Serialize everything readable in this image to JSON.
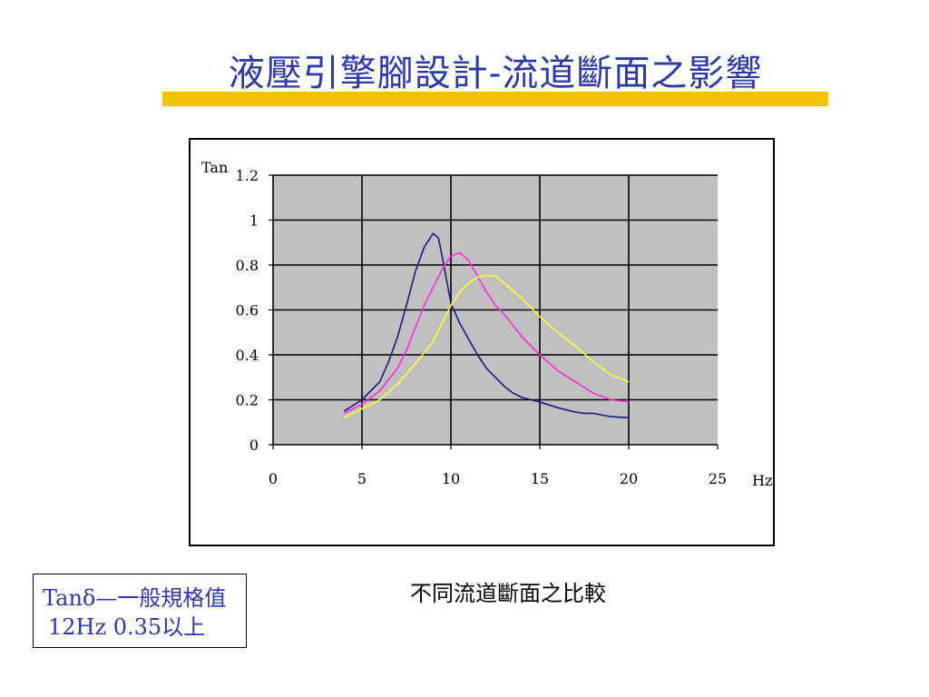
{
  "slide": {
    "title": "液壓引擎腳設計-流道斷面之影響",
    "caption": "不同流道斷面之比較",
    "spec_line1": "Tanδ—一般規格值",
    "spec_line2": "12Hz 0.35以上"
  },
  "colors": {
    "title": "#2a3aa8",
    "title_bar": "#f2c200",
    "plot_bg": "#c0c0c0",
    "series_1": "#1a1a80",
    "series_2": "#ff2cd8",
    "series_3": "#ffff2c"
  },
  "chart_data": {
    "type": "line",
    "title": "",
    "xlabel": "Hz",
    "ylabel": "Tan",
    "xlim": [
      0,
      25
    ],
    "ylim": [
      0,
      1.2
    ],
    "x_ticks": [
      0,
      5,
      10,
      15,
      20,
      25
    ],
    "y_ticks": [
      0,
      0.2,
      0.4,
      0.6,
      0.8,
      1,
      1.2
    ],
    "x_tick_labels": [
      "0",
      "5",
      "10",
      "15",
      "20",
      "25"
    ],
    "y_tick_labels": [
      "0",
      "0.2",
      "0.4",
      "0.6",
      "0.8",
      "1",
      "1.2"
    ],
    "grid": true,
    "legend": "none",
    "series": [
      {
        "color": "#1a1a80",
        "x": [
          4,
          5,
          6,
          6.5,
          7,
          7.5,
          8,
          8.5,
          9,
          9.3,
          9.6,
          10,
          10.5,
          11,
          11.5,
          12,
          12.5,
          13,
          13.5,
          14,
          15,
          16,
          17,
          17.5,
          18,
          19,
          20
        ],
        "y": [
          0.15,
          0.2,
          0.28,
          0.37,
          0.48,
          0.62,
          0.77,
          0.88,
          0.94,
          0.92,
          0.8,
          0.63,
          0.54,
          0.47,
          0.4,
          0.34,
          0.3,
          0.26,
          0.23,
          0.21,
          0.19,
          0.165,
          0.145,
          0.14,
          0.14,
          0.125,
          0.12
        ]
      },
      {
        "color": "#ff2cd8",
        "x": [
          4,
          5,
          6,
          7,
          7.5,
          8,
          8.5,
          9,
          9.5,
          10,
          10.5,
          11,
          11.5,
          12,
          12.5,
          13,
          14,
          15,
          16,
          17,
          18,
          19,
          20
        ],
        "y": [
          0.14,
          0.18,
          0.24,
          0.34,
          0.42,
          0.52,
          0.62,
          0.7,
          0.78,
          0.84,
          0.855,
          0.82,
          0.75,
          0.68,
          0.62,
          0.58,
          0.48,
          0.4,
          0.33,
          0.28,
          0.23,
          0.2,
          0.19
        ]
      },
      {
        "color": "#ffff2c",
        "x": [
          4,
          5,
          6,
          7,
          8,
          9,
          9.5,
          10,
          10.5,
          11,
          11.5,
          12,
          12.5,
          13,
          14,
          15,
          16,
          17,
          18,
          19,
          20
        ],
        "y": [
          0.12,
          0.16,
          0.2,
          0.27,
          0.36,
          0.46,
          0.54,
          0.62,
          0.68,
          0.72,
          0.745,
          0.755,
          0.75,
          0.72,
          0.65,
          0.57,
          0.5,
          0.44,
          0.37,
          0.31,
          0.28
        ]
      }
    ]
  }
}
